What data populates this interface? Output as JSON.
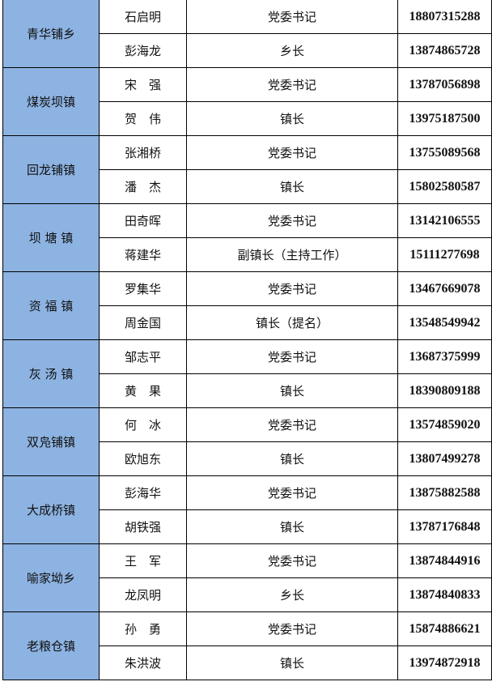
{
  "colors": {
    "town_cell_bg": "#8db3e2",
    "border": "#000000"
  },
  "rows": [
    {
      "town": "青华铺乡",
      "officials": [
        {
          "name": "石启明",
          "title": "党委书记",
          "phone": "18807315288"
        },
        {
          "name": "彭海龙",
          "title": "乡长",
          "phone": "13874865728"
        }
      ]
    },
    {
      "town": "煤炭坝镇",
      "officials": [
        {
          "name": "宋　强",
          "title": "党委书记",
          "phone": "13787056898"
        },
        {
          "name": "贺　伟",
          "title": "镇长",
          "phone": "13975187500"
        }
      ]
    },
    {
      "town": "回龙铺镇",
      "officials": [
        {
          "name": "张湘桥",
          "title": "党委书记",
          "phone": "13755089568"
        },
        {
          "name": "潘　杰",
          "title": "镇长",
          "phone": "15802580587"
        }
      ]
    },
    {
      "town": "坝 塘 镇",
      "officials": [
        {
          "name": "田奇晖",
          "title": "党委书记",
          "phone": "13142106555"
        },
        {
          "name": "蒋建华",
          "title": "副镇长（主持工作）",
          "phone": "15111277698"
        }
      ]
    },
    {
      "town": "资 福 镇",
      "officials": [
        {
          "name": "罗集华",
          "title": "党委书记",
          "phone": "13467669078"
        },
        {
          "name": "周金国",
          "title": "镇长（提名）",
          "phone": "13548549942"
        }
      ]
    },
    {
      "town": "灰 汤 镇",
      "officials": [
        {
          "name": "邹志平",
          "title": "党委书记",
          "phone": "13687375999"
        },
        {
          "name": "黄　果",
          "title": "镇长",
          "phone": "18390809188"
        }
      ]
    },
    {
      "town": "双凫铺镇",
      "officials": [
        {
          "name": "何　冰",
          "title": "党委书记",
          "phone": "13574859020"
        },
        {
          "name": "欧旭东",
          "title": "镇长",
          "phone": "13807499278"
        }
      ]
    },
    {
      "town": "大成桥镇",
      "officials": [
        {
          "name": "彭海华",
          "title": "党委书记",
          "phone": "13875882588"
        },
        {
          "name": "胡铁强",
          "title": "镇长",
          "phone": "13787176848"
        }
      ]
    },
    {
      "town": "喻家坳乡",
      "officials": [
        {
          "name": "王　军",
          "title": "党委书记",
          "phone": "13874844916"
        },
        {
          "name": "龙凤明",
          "title": "乡长",
          "phone": "13874840833"
        }
      ]
    },
    {
      "town": "老粮仓镇",
      "officials": [
        {
          "name": "孙　勇",
          "title": "党委书记",
          "phone": "15874886621"
        },
        {
          "name": "朱洪波",
          "title": "镇长",
          "phone": "13974872918"
        }
      ]
    }
  ]
}
